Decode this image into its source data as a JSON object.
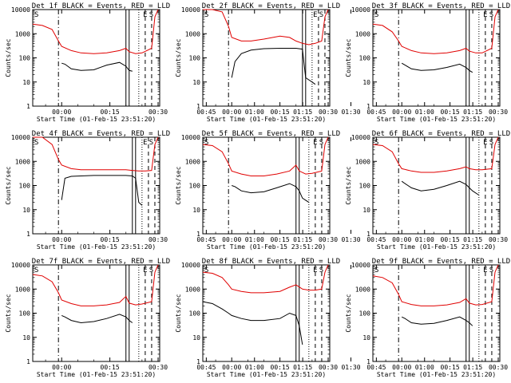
{
  "layout": {
    "columns": 3,
    "rows": 3
  },
  "common": {
    "ylabel": "Counts/sec",
    "xlabel": "Start Time (01-Feb-15 23:51:20)",
    "ylim": [
      1,
      10000
    ],
    "yscale": "log",
    "ytick_labels": [
      "1",
      "10",
      "100",
      "1000",
      "10000"
    ],
    "xticks": [
      "00:00",
      "00:15",
      "00:30",
      "00:45",
      "01:00",
      "01:15",
      "01:30"
    ],
    "xlim_minutes": [
      -9,
      30.5
    ],
    "line_colors": {
      "events": "#000000",
      "lld": "#e00000"
    },
    "corner_marks": [
      "S",
      "E",
      "S"
    ]
  },
  "chart_data": [
    {
      "type": "line",
      "title": "Det 1f BLACK = Events, RED = LLD",
      "series": [
        {
          "color": "#000000",
          "x": [
            0,
            1,
            3,
            6,
            10,
            14,
            18,
            20,
            21,
            22
          ],
          "y": [
            60,
            55,
            35,
            30,
            32,
            50,
            65,
            45,
            30,
            28
          ]
        },
        {
          "color": "#e00000",
          "x": [
            -9,
            -6,
            -3,
            -1,
            0,
            3,
            6,
            10,
            14,
            18,
            20,
            21,
            23,
            25,
            28,
            29,
            30
          ],
          "y": [
            2500,
            2200,
            1500,
            500,
            300,
            200,
            160,
            150,
            160,
            200,
            250,
            180,
            150,
            160,
            250,
            5000,
            10000
          ]
        }
      ],
      "vlines": [
        {
          "x": -1,
          "style": "dashdot"
        },
        {
          "x": 20,
          "style": "solid"
        },
        {
          "x": 21,
          "style": "solid"
        },
        {
          "x": 24,
          "style": "dotted"
        },
        {
          "x": 26,
          "style": "dashed"
        },
        {
          "x": 28,
          "style": "dashed"
        }
      ]
    },
    {
      "type": "line",
      "title": "Det 2f BLACK = Events, RED = LLD",
      "series": [
        {
          "color": "#000000",
          "x": [
            0,
            1,
            3,
            6,
            10,
            15,
            20,
            22,
            23,
            25,
            26
          ],
          "y": [
            15,
            70,
            150,
            210,
            240,
            250,
            250,
            230,
            15,
            10,
            8
          ]
        },
        {
          "color": "#e00000",
          "x": [
            -9,
            -6,
            -3,
            -1,
            0,
            3,
            6,
            10,
            15,
            18,
            20,
            22,
            24,
            26,
            28,
            29,
            30
          ],
          "y": [
            10000,
            10000,
            8000,
            2000,
            700,
            500,
            500,
            600,
            800,
            700,
            500,
            400,
            350,
            400,
            500,
            5000,
            10000
          ]
        }
      ],
      "vlines": [
        {
          "x": -1,
          "style": "dashdot"
        },
        {
          "x": 22,
          "style": "solid"
        },
        {
          "x": 23,
          "style": "solid"
        },
        {
          "x": 25,
          "style": "dotted"
        },
        {
          "x": 27,
          "style": "dashed"
        },
        {
          "x": 29,
          "style": "dashed"
        }
      ]
    },
    {
      "type": "line",
      "title": "Det 3f BLACK = Events, RED = LLD",
      "series": [
        {
          "color": "#000000",
          "x": [
            0,
            1,
            3,
            6,
            10,
            14,
            18,
            20,
            21,
            22
          ],
          "y": [
            60,
            50,
            35,
            30,
            32,
            40,
            55,
            40,
            30,
            25
          ]
        },
        {
          "color": "#e00000",
          "x": [
            -9,
            -6,
            -3,
            -1,
            0,
            3,
            6,
            10,
            14,
            18,
            20,
            21,
            23,
            25,
            28,
            29,
            30
          ],
          "y": [
            2500,
            2200,
            1200,
            500,
            300,
            200,
            160,
            150,
            160,
            200,
            250,
            190,
            160,
            160,
            250,
            5000,
            10000
          ]
        }
      ],
      "vlines": [
        {
          "x": -1,
          "style": "dashdot"
        },
        {
          "x": 20,
          "style": "solid"
        },
        {
          "x": 21,
          "style": "solid"
        },
        {
          "x": 24,
          "style": "dotted"
        },
        {
          "x": 26,
          "style": "dashed"
        },
        {
          "x": 28,
          "style": "dashed"
        }
      ]
    },
    {
      "type": "line",
      "title": "Det 4f BLACK = Events, RED = LLD",
      "series": [
        {
          "color": "#000000",
          "x": [
            0,
            1,
            3,
            6,
            10,
            15,
            20,
            22,
            23,
            24,
            25
          ],
          "y": [
            25,
            200,
            240,
            250,
            260,
            260,
            260,
            250,
            200,
            20,
            15
          ]
        },
        {
          "color": "#e00000",
          "x": [
            -9,
            -6,
            -3,
            -1,
            0,
            3,
            6,
            10,
            15,
            18,
            20,
            22,
            24,
            26,
            28,
            29,
            30
          ],
          "y": [
            10000,
            10000,
            5000,
            1200,
            700,
            500,
            450,
            450,
            450,
            450,
            450,
            420,
            400,
            400,
            420,
            5000,
            10000
          ]
        }
      ],
      "vlines": [
        {
          "x": -1,
          "style": "dashdot"
        },
        {
          "x": 22,
          "style": "solid"
        },
        {
          "x": 23,
          "style": "solid"
        },
        {
          "x": 25,
          "style": "dotted"
        },
        {
          "x": 27,
          "style": "dashed"
        },
        {
          "x": 29,
          "style": "dashed"
        }
      ]
    },
    {
      "type": "line",
      "title": "Det 5f BLACK = Events, RED = LLD",
      "series": [
        {
          "color": "#000000",
          "x": [
            0,
            1,
            3,
            6,
            10,
            14,
            18,
            20,
            21,
            22,
            24
          ],
          "y": [
            100,
            90,
            60,
            50,
            55,
            80,
            120,
            90,
            60,
            30,
            20
          ]
        },
        {
          "color": "#e00000",
          "x": [
            -9,
            -6,
            -3,
            -1,
            0,
            3,
            6,
            10,
            14,
            18,
            20,
            21,
            23,
            25,
            28,
            29,
            30
          ],
          "y": [
            5000,
            4500,
            2500,
            800,
            400,
            300,
            250,
            250,
            300,
            400,
            700,
            400,
            300,
            320,
            400,
            5000,
            10000
          ]
        }
      ],
      "vlines": [
        {
          "x": -1,
          "style": "dashdot"
        },
        {
          "x": 20,
          "style": "solid"
        },
        {
          "x": 21,
          "style": "solid"
        },
        {
          "x": 24,
          "style": "dotted"
        },
        {
          "x": 26,
          "style": "dashed"
        },
        {
          "x": 28,
          "style": "dashed"
        }
      ]
    },
    {
      "type": "line",
      "title": "Det 6f BLACK = Events, RED = LLD",
      "series": [
        {
          "color": "#000000",
          "x": [
            0,
            1,
            3,
            6,
            10,
            14,
            18,
            20,
            21,
            22,
            24
          ],
          "y": [
            150,
            120,
            80,
            60,
            70,
            100,
            150,
            110,
            80,
            60,
            40
          ]
        },
        {
          "color": "#e00000",
          "x": [
            -9,
            -6,
            -3,
            -1,
            0,
            3,
            6,
            10,
            14,
            18,
            20,
            21,
            23,
            25,
            28,
            29,
            30
          ],
          "y": [
            5000,
            4500,
            2500,
            800,
            500,
            400,
            350,
            350,
            400,
            500,
            600,
            500,
            450,
            450,
            500,
            5000,
            10000
          ]
        }
      ],
      "vlines": [
        {
          "x": -1,
          "style": "dashdot"
        },
        {
          "x": 20,
          "style": "solid"
        },
        {
          "x": 21,
          "style": "solid"
        },
        {
          "x": 24,
          "style": "dotted"
        },
        {
          "x": 26,
          "style": "dashed"
        },
        {
          "x": 28,
          "style": "dashed"
        }
      ]
    },
    {
      "type": "line",
      "title": "Det 7f BLACK = Events, RED = LLD",
      "series": [
        {
          "color": "#000000",
          "x": [
            0,
            1,
            3,
            6,
            10,
            14,
            18,
            20,
            21,
            22
          ],
          "y": [
            80,
            70,
            50,
            40,
            45,
            60,
            90,
            70,
            50,
            40
          ]
        },
        {
          "color": "#e00000",
          "x": [
            -9,
            -6,
            -3,
            -1,
            0,
            3,
            6,
            10,
            14,
            18,
            20,
            21,
            23,
            25,
            28,
            29,
            30
          ],
          "y": [
            4000,
            3500,
            2000,
            700,
            350,
            250,
            200,
            200,
            220,
            280,
            500,
            260,
            220,
            240,
            300,
            5000,
            10000
          ]
        }
      ],
      "vlines": [
        {
          "x": -1,
          "style": "dashdot"
        },
        {
          "x": 20,
          "style": "solid"
        },
        {
          "x": 21,
          "style": "solid"
        },
        {
          "x": 24,
          "style": "dotted"
        },
        {
          "x": 26,
          "style": "dashed"
        },
        {
          "x": 28,
          "style": "dashed"
        }
      ]
    },
    {
      "type": "line",
      "title": "Det 8f BLACK = Events, RED = LLD",
      "series": [
        {
          "color": "#000000",
          "x": [
            -9,
            -6,
            -3,
            -1,
            0,
            3,
            6,
            10,
            15,
            18,
            20,
            21,
            22
          ],
          "y": [
            300,
            250,
            150,
            100,
            80,
            60,
            50,
            50,
            60,
            100,
            80,
            30,
            5
          ]
        },
        {
          "color": "#e00000",
          "x": [
            -9,
            -6,
            -3,
            -1,
            0,
            3,
            6,
            10,
            15,
            18,
            20,
            22,
            24,
            26,
            28,
            29,
            30
          ],
          "y": [
            5000,
            4500,
            3000,
            1500,
            1000,
            800,
            700,
            700,
            800,
            1200,
            1500,
            1000,
            900,
            900,
            1000,
            5000,
            10000
          ]
        }
      ],
      "vlines": [
        {
          "x": 20,
          "style": "solid"
        },
        {
          "x": 21,
          "style": "solid"
        },
        {
          "x": 24,
          "style": "dotted"
        },
        {
          "x": 26,
          "style": "dashed"
        },
        {
          "x": 28,
          "style": "dashed"
        }
      ]
    },
    {
      "type": "line",
      "title": "Det 9f BLACK = Events, RED = LLD",
      "series": [
        {
          "color": "#000000",
          "x": [
            0,
            1,
            3,
            6,
            10,
            14,
            18,
            20,
            21,
            22
          ],
          "y": [
            70,
            60,
            40,
            35,
            38,
            50,
            70,
            50,
            40,
            30
          ]
        },
        {
          "color": "#e00000",
          "x": [
            -9,
            -6,
            -3,
            -1,
            0,
            3,
            6,
            10,
            14,
            18,
            20,
            21,
            23,
            25,
            28,
            29,
            30
          ],
          "y": [
            3500,
            3000,
            1800,
            600,
            300,
            230,
            200,
            200,
            220,
            280,
            400,
            260,
            220,
            230,
            300,
            5000,
            10000
          ]
        }
      ],
      "vlines": [
        {
          "x": -1,
          "style": "dashdot"
        },
        {
          "x": 20,
          "style": "solid"
        },
        {
          "x": 21,
          "style": "solid"
        },
        {
          "x": 24,
          "style": "dotted"
        },
        {
          "x": 26,
          "style": "dashed"
        },
        {
          "x": 28,
          "style": "dashed"
        }
      ]
    }
  ]
}
